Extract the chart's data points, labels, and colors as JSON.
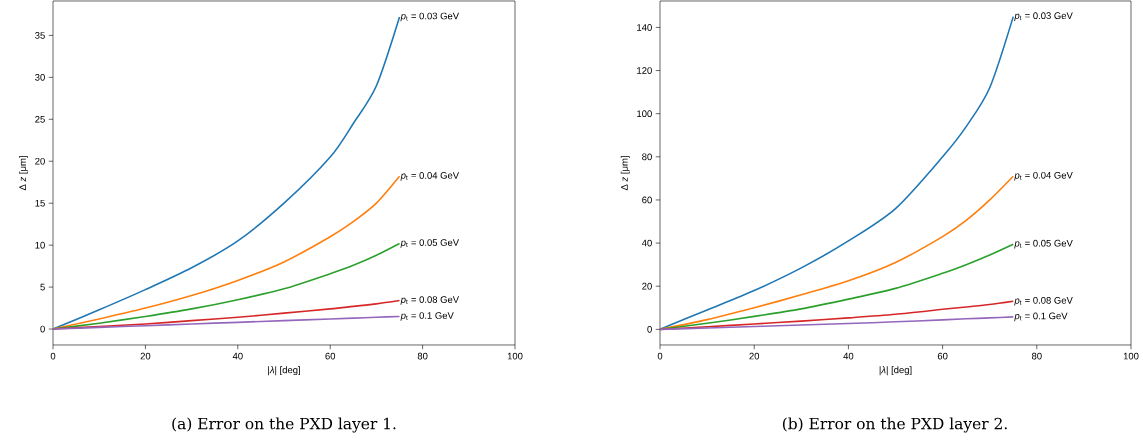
{
  "chart_data": [
    {
      "type": "line",
      "xlabel": "|*λ*| [deg]",
      "ylabel": "Δ *z* [μm]",
      "xlim": [
        0,
        100
      ],
      "xticks": [
        0,
        20,
        40,
        60,
        80,
        100
      ],
      "ylim": [
        -1.9,
        39.1
      ],
      "yticks": [
        0,
        5,
        10,
        15,
        20,
        25,
        30,
        35
      ],
      "x": [
        0,
        10,
        20,
        30,
        40,
        50,
        60,
        65,
        70,
        75
      ],
      "series": [
        {
          "name": "*p*$_{t}$ = 0.03 GeV",
          "color": "#1f77b4",
          "values": [
            0,
            2.3,
            4.7,
            7.3,
            10.5,
            15,
            20.5,
            24.5,
            29,
            37.2
          ]
        },
        {
          "name": "*p*$_{t}$ = 0.04 GeV",
          "color": "#ff7f0e",
          "values": [
            0,
            1.2,
            2.5,
            4,
            5.8,
            8,
            11,
            12.8,
            15,
            18.2
          ]
        },
        {
          "name": "*p*$_{t}$ = 0.05 GeV",
          "color": "#2ca02c",
          "values": [
            0,
            0.7,
            1.5,
            2.4,
            3.5,
            4.8,
            6.6,
            7.6,
            8.8,
            10.2
          ]
        },
        {
          "name": "*p*$_{t}$ = 0.08 GeV",
          "color": "#d62728",
          "values": [
            0,
            0.3,
            0.6,
            1.0,
            1.4,
            1.9,
            2.4,
            2.7,
            3.0,
            3.4
          ]
        },
        {
          "name": "*p*$_{t}$ = 0.1 GeV",
          "color": "#9467bd",
          "values": [
            0,
            0.2,
            0.4,
            0.6,
            0.8,
            1.0,
            1.2,
            1.3,
            1.4,
            1.5
          ]
        }
      ],
      "annotations": [
        "(a) Error on the PXD layer 1."
      ]
    },
    {
      "type": "line",
      "xlabel": "|*λ*| [deg]",
      "ylabel": "Δ *z* [μm]",
      "xlim": [
        0,
        100
      ],
      "xticks": [
        0,
        20,
        40,
        60,
        80,
        100
      ],
      "ylim": [
        -7.25,
        152.25
      ],
      "yticks": [
        0,
        20,
        40,
        60,
        80,
        100,
        120,
        140
      ],
      "x": [
        0,
        10,
        20,
        30,
        40,
        50,
        60,
        65,
        70,
        75
      ],
      "series": [
        {
          "name": "*p*$_{t}$ = 0.03 GeV",
          "color": "#1f77b4",
          "values": [
            0,
            9,
            18,
            28.5,
            41,
            56,
            80,
            94,
            112,
            145
          ]
        },
        {
          "name": "*p*$_{t}$ = 0.04 GeV",
          "color": "#ff7f0e",
          "values": [
            0,
            4.5,
            10,
            16,
            22.5,
            31,
            43,
            50.5,
            60,
            71
          ]
        },
        {
          "name": "*p*$_{t}$ = 0.05 GeV",
          "color": "#2ca02c",
          "values": [
            0,
            2.8,
            6,
            9.5,
            14,
            19,
            26,
            30,
            34.5,
            39.5
          ]
        },
        {
          "name": "*p*$_{t}$ = 0.08 GeV",
          "color": "#d62728",
          "values": [
            0,
            1.2,
            2.5,
            3.8,
            5.3,
            7,
            9.3,
            10.4,
            11.5,
            13
          ]
        },
        {
          "name": "*p*$_{t}$ = 0.1 GeV",
          "color": "#9467bd",
          "values": [
            0,
            0.6,
            1.3,
            2,
            2.7,
            3.5,
            4.4,
            4.9,
            5.3,
            5.8
          ]
        }
      ],
      "annotations": [
        "(b) Error on the PXD layer 2."
      ]
    }
  ]
}
